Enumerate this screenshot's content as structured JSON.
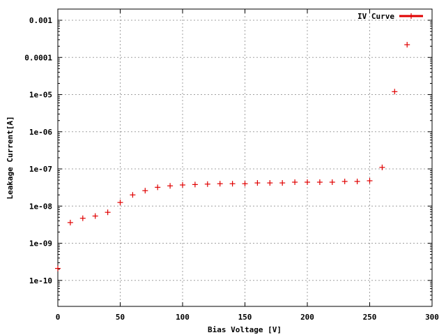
{
  "chart_data": {
    "type": "scatter",
    "title": "",
    "xlabel": "Bias Voltage [V]",
    "ylabel": "Leakage Current[A]",
    "xlim": [
      0,
      300
    ],
    "ylim": [
      2e-11,
      0.002
    ],
    "yscale": "log",
    "grid": true,
    "legend_position": "top-right",
    "x_ticks": [
      0,
      50,
      100,
      150,
      200,
      250,
      300
    ],
    "x_tick_labels": [
      "0",
      "50",
      "100",
      "150",
      "200",
      "250",
      "300"
    ],
    "y_ticks": [
      1e-10,
      1e-09,
      1e-08,
      1e-07,
      1e-06,
      1e-05,
      0.0001,
      0.001
    ],
    "y_tick_labels": [
      "1e-10",
      "1e-09",
      "1e-08",
      "1e-07",
      "1e-06",
      "1e-05",
      "0.0001",
      "0.001"
    ],
    "series": [
      {
        "name": "IV Curve",
        "color": "#e00000",
        "marker": "plus",
        "x": [
          0,
          10,
          20,
          30,
          40,
          50,
          60,
          70,
          80,
          90,
          100,
          110,
          120,
          130,
          140,
          150,
          160,
          170,
          180,
          190,
          200,
          210,
          220,
          230,
          240,
          250,
          260,
          270,
          280
        ],
        "y": [
          2.1e-10,
          3.6e-09,
          4.7e-09,
          5.4e-09,
          6.8e-09,
          1.25e-08,
          2e-08,
          2.6e-08,
          3.2e-08,
          3.5e-08,
          3.7e-08,
          3.8e-08,
          3.9e-08,
          4e-08,
          4e-08,
          4e-08,
          4.2e-08,
          4.2e-08,
          4.2e-08,
          4.4e-08,
          4.4e-08,
          4.4e-08,
          4.4e-08,
          4.6e-08,
          4.6e-08,
          4.8e-08,
          1.1e-07,
          1.2e-05,
          0.00022
        ]
      }
    ]
  }
}
